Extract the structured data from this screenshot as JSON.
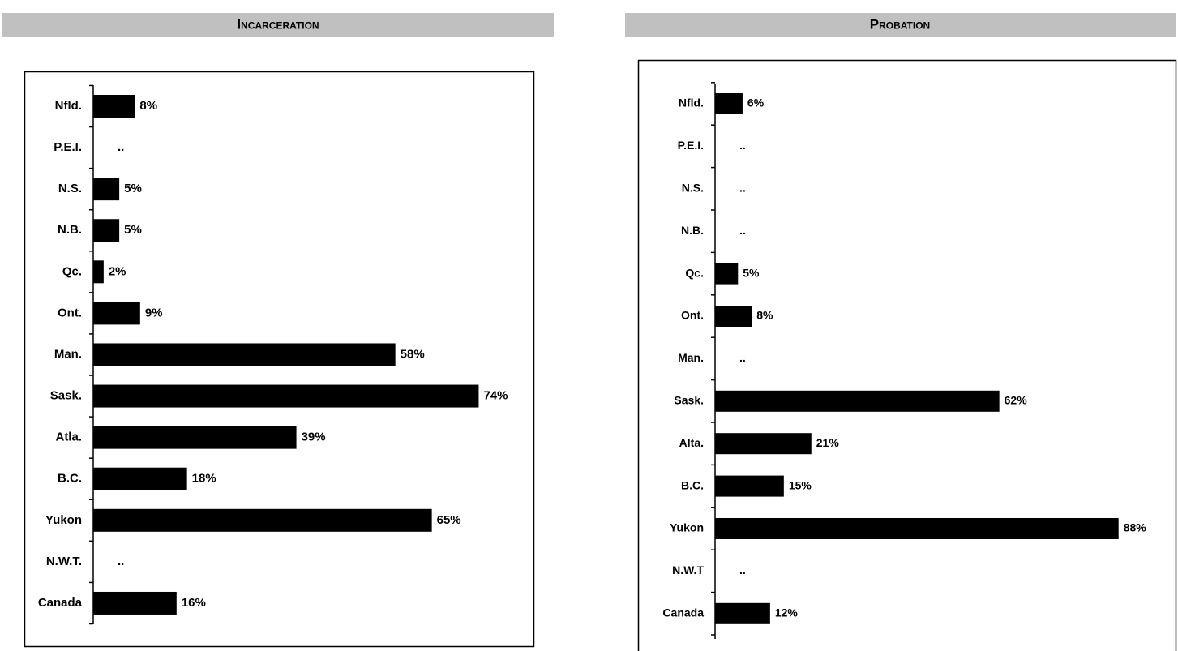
{
  "chart_data": [
    {
      "type": "bar",
      "orientation": "horizontal",
      "title": "Incarceration",
      "categories": [
        "Nfld.",
        "P.E.I.",
        "N.S.",
        "N.B.",
        "Qc.",
        "Ont.",
        "Man.",
        "Sask.",
        "Atla.",
        "B.C.",
        "Yukon",
        "N.W.T.",
        "Canada"
      ],
      "values": [
        8,
        null,
        5,
        5,
        2,
        9,
        58,
        74,
        39,
        18,
        65,
        null,
        16
      ],
      "value_labels": [
        "8%",
        "..",
        "5%",
        "5%",
        "2%",
        "9%",
        "58%",
        "74%",
        "39%",
        "18%",
        "65%",
        "..",
        "16%"
      ],
      "color": "#000000",
      "xlim": [
        0,
        80
      ]
    },
    {
      "type": "bar",
      "orientation": "horizontal",
      "title": "Probation",
      "categories": [
        "Nfld.",
        "P.E.I.",
        "N.S.",
        "N.B.",
        "Qc.",
        "Ont.",
        "Man.",
        "Sask.",
        "Alta.",
        "B.C.",
        "Yukon",
        "N.W.T",
        "Canada"
      ],
      "values": [
        6,
        null,
        null,
        null,
        5,
        8,
        null,
        62,
        21,
        15,
        88,
        null,
        12
      ],
      "value_labels": [
        "6%",
        "..",
        "..",
        "..",
        "5%",
        "8%",
        "..",
        "62%",
        "21%",
        "15%",
        "88%",
        "..",
        "12%"
      ],
      "color": "#000000",
      "xlim": [
        0,
        90
      ]
    }
  ]
}
